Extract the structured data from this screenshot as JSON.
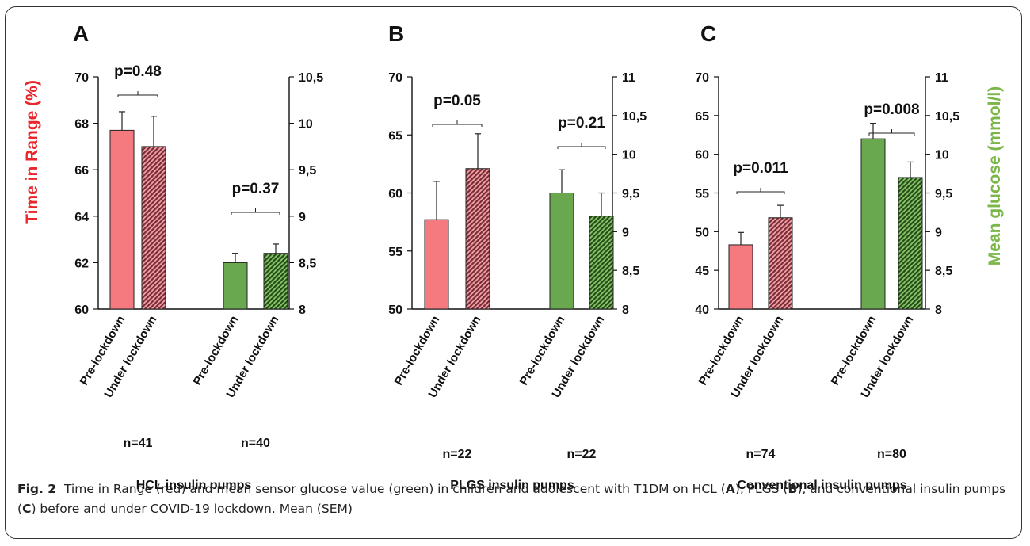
{
  "figure": {
    "caption_label": "Fig. 2",
    "caption_text_1": "Time in Range (red) and mean sensor glucose value (green) in children and adolescent with T1DM on HCL (",
    "caption_A": "A",
    "caption_text_2": "), PLGS (",
    "caption_B": "B",
    "caption_text_3": "), and conventional insulin pumps  (",
    "caption_C": "C",
    "caption_text_4": ") before and under COVID-19 lockdown. Mean (SEM)",
    "left_axis_label": "Time in Range (%)",
    "right_axis_label": "Mean glucose (mmol/l)",
    "colors": {
      "tir": "#f47a7f",
      "tir_hatch": "#8a3b44",
      "glucose": "#6aa84f",
      "glucose_hatch": "#2f5d1f",
      "tir_label": "#e8262b",
      "glucose_label": "#7ab648"
    }
  },
  "chart_data": [
    {
      "type": "bar",
      "panel": "A",
      "group_label": "HCL insulin pumps",
      "left_axis": {
        "ylim": [
          60,
          70
        ],
        "ticks": [
          "60",
          "62",
          "64",
          "66",
          "68",
          "70"
        ]
      },
      "right_axis": {
        "ylim": [
          8,
          10.5
        ],
        "ticks": [
          "8",
          "8,5",
          "9",
          "9,5",
          "10",
          "10,5"
        ]
      },
      "categories": [
        "Pre-lockdown",
        "Under lockdown",
        "Pre-lockdown",
        "Under lockdown"
      ],
      "tir": {
        "values": [
          67.7,
          67.0
        ],
        "sem": [
          0.8,
          1.3
        ]
      },
      "glucose": {
        "values": [
          8.5,
          8.6
        ],
        "sem": [
          0.1,
          0.1
        ]
      },
      "p_values": [
        "p=0.48",
        "p=0.37"
      ],
      "n": [
        "n=41",
        "n=40"
      ]
    },
    {
      "type": "bar",
      "panel": "B",
      "group_label": "PLGS insulin pumps",
      "left_axis": {
        "ylim": [
          50,
          70
        ],
        "ticks": [
          "50",
          "55",
          "60",
          "65",
          "70"
        ]
      },
      "right_axis": {
        "ylim": [
          8,
          11
        ],
        "ticks": [
          "8",
          "8,5",
          "9",
          "9,5",
          "10",
          "10,5",
          "11"
        ]
      },
      "categories": [
        "Pre-lockdown",
        "Under lockdown",
        "Pre-lockdown",
        "Under lockdown"
      ],
      "tir": {
        "values": [
          57.7,
          62.1
        ],
        "sem": [
          3.3,
          3.0
        ]
      },
      "glucose": {
        "values": [
          9.5,
          9.2
        ],
        "sem": [
          0.3,
          0.3
        ]
      },
      "p_values": [
        "p=0.05",
        "p=0.21"
      ],
      "n": [
        "n=22",
        "n=22"
      ]
    },
    {
      "type": "bar",
      "panel": "C",
      "group_label": "Conventional insulin pumps",
      "left_axis": {
        "ylim": [
          40,
          70
        ],
        "ticks": [
          "40",
          "45",
          "50",
          "55",
          "60",
          "65",
          "70"
        ]
      },
      "right_axis": {
        "ylim": [
          8,
          11
        ],
        "ticks": [
          "8",
          "8,5",
          "9",
          "9,5",
          "10",
          "10,5",
          "11"
        ]
      },
      "categories": [
        "Pre-lockdown",
        "Under lockdown",
        "Pre-lockdown",
        "Under lockdown"
      ],
      "tir": {
        "values": [
          48.3,
          51.8
        ],
        "sem": [
          1.6,
          1.6
        ]
      },
      "glucose": {
        "values": [
          10.2,
          9.7
        ],
        "sem": [
          0.2,
          0.2
        ]
      },
      "p_values": [
        "p=0.011",
        "p=0.008"
      ],
      "n": [
        "n=74",
        "n=80"
      ]
    }
  ]
}
